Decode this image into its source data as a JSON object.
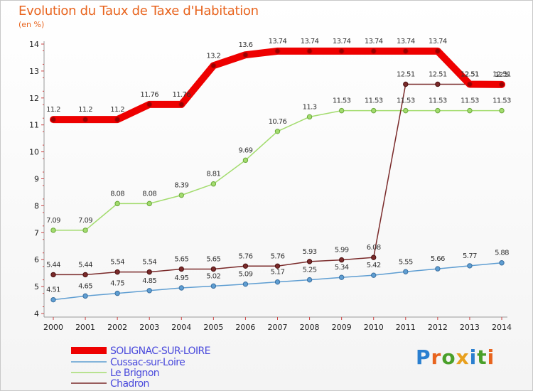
{
  "title": "Evolution du Taux de Taxe d'Habitation",
  "unit": "(en %)",
  "logo": "Proxiti",
  "chart_data": {
    "type": "line",
    "x": [
      "2000",
      "2001",
      "2002",
      "2003",
      "2004",
      "2005",
      "2006",
      "2007",
      "2008",
      "2009",
      "2010",
      "2011",
      "2012",
      "2013",
      "2014"
    ],
    "ylim": [
      4,
      14
    ],
    "yticks": [
      4,
      5,
      6,
      7,
      8,
      9,
      10,
      11,
      12,
      13,
      14
    ],
    "grid": false,
    "legend_position": "bottom-left",
    "series": [
      {
        "name": "SOLIGNAC-SUR-LOIRE",
        "color": "#ee0000",
        "values": [
          11.2,
          11.2,
          11.2,
          11.76,
          11.76,
          13.2,
          13.6,
          13.74,
          13.74,
          13.74,
          13.74,
          13.74,
          13.74,
          12.51,
          12.5
        ],
        "labels": [
          "11.2",
          "11.2",
          "11.2",
          "11.76",
          "11.76",
          "13.2",
          "13.6",
          "13.74",
          "13.74",
          "13.74",
          "13.74",
          "13.74",
          "13.74",
          "12.51",
          "12.5"
        ]
      },
      {
        "name": "Cussac-sur-Loire",
        "color": "#5f9ed2",
        "values": [
          4.51,
          4.65,
          4.75,
          4.85,
          4.95,
          5.02,
          5.09,
          5.17,
          5.25,
          5.34,
          5.42,
          5.55,
          5.66,
          5.77,
          5.88
        ],
        "labels": [
          "4.51",
          "4.65",
          "4.75",
          "4.85",
          "4.95",
          "5.02",
          "5.09",
          "5.17",
          "5.25",
          "5.34",
          "5.42",
          "5.55",
          "5.66",
          "5.77",
          "5.88"
        ]
      },
      {
        "name": "Le Brignon",
        "color": "#a3dc6e",
        "values": [
          7.09,
          7.09,
          8.08,
          8.08,
          8.39,
          8.81,
          9.69,
          10.76,
          11.3,
          11.53,
          11.53,
          11.53,
          11.53,
          11.53,
          11.53
        ],
        "labels": [
          "7.09",
          "7.09",
          "8.08",
          "8.08",
          "8.39",
          "8.81",
          "9.69",
          "10.76",
          "11.3",
          "11.53",
          "11.53",
          "11.53",
          "11.53",
          "11.53",
          "11.53"
        ]
      },
      {
        "name": "Chadron",
        "color": "#7a2a2a",
        "values": [
          5.44,
          5.44,
          5.54,
          5.54,
          5.65,
          5.65,
          5.76,
          5.76,
          5.93,
          5.99,
          6.08,
          12.51,
          12.51,
          12.51,
          12.51
        ],
        "labels": [
          "5.44",
          "5.44",
          "5.54",
          "5.54",
          "5.65",
          "5.65",
          "5.76",
          "5.76",
          "5.93",
          "5.99",
          "6.08",
          "12.51",
          "12.51",
          "12.51",
          "12.51"
        ]
      }
    ]
  }
}
